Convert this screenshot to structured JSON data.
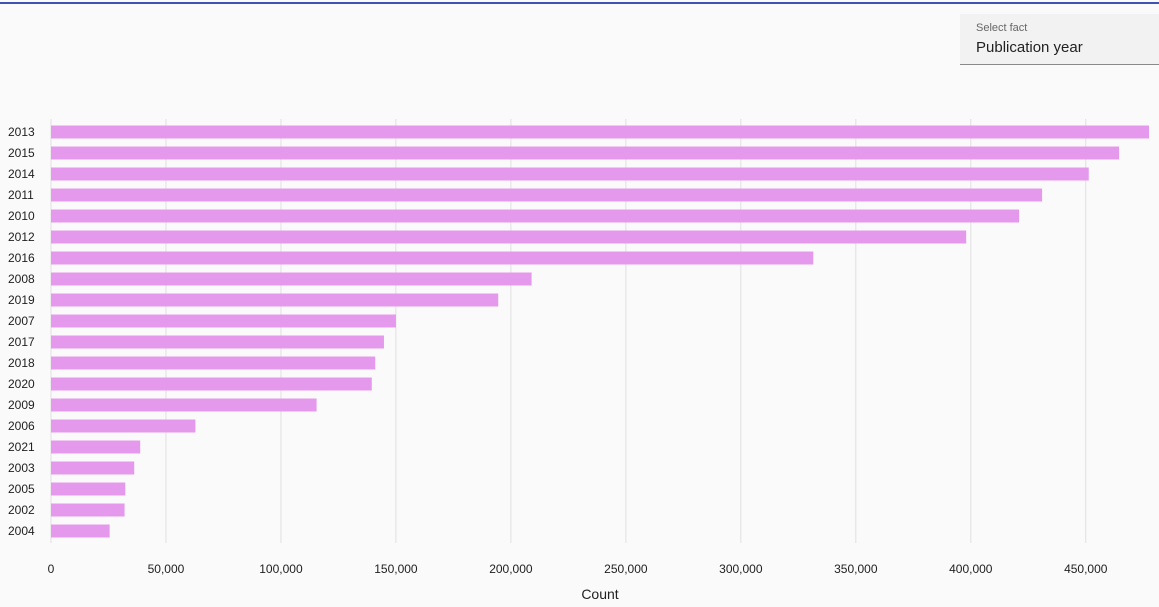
{
  "select": {
    "label": "Select fact",
    "value": "Publication year"
  },
  "colors": {
    "bar": "#e599ec",
    "grid": "#e0e0e0",
    "accent": "#3f51b5"
  },
  "chart_data": {
    "type": "bar",
    "orientation": "horizontal",
    "categories": [
      "2013",
      "2015",
      "2014",
      "2011",
      "2010",
      "2012",
      "2016",
      "2008",
      "2019",
      "2007",
      "2017",
      "2018",
      "2020",
      "2009",
      "2006",
      "2021",
      "2003",
      "2005",
      "2002",
      "2004"
    ],
    "values": [
      477500,
      464500,
      451300,
      431000,
      421000,
      398000,
      331500,
      209000,
      194500,
      150000,
      144800,
      141000,
      139500,
      115500,
      62800,
      38800,
      36200,
      32300,
      32000,
      25500
    ],
    "xlabel": "Count",
    "ylabel": "",
    "xlim": [
      0,
      477500
    ],
    "xticks": [
      0,
      50000,
      100000,
      150000,
      200000,
      250000,
      300000,
      350000,
      400000,
      450000
    ],
    "xtick_labels": [
      "0",
      "50,000",
      "100,000",
      "150,000",
      "200,000",
      "250,000",
      "300,000",
      "350,000",
      "400,000",
      "450,000"
    ],
    "grid": true,
    "legend": "none"
  }
}
